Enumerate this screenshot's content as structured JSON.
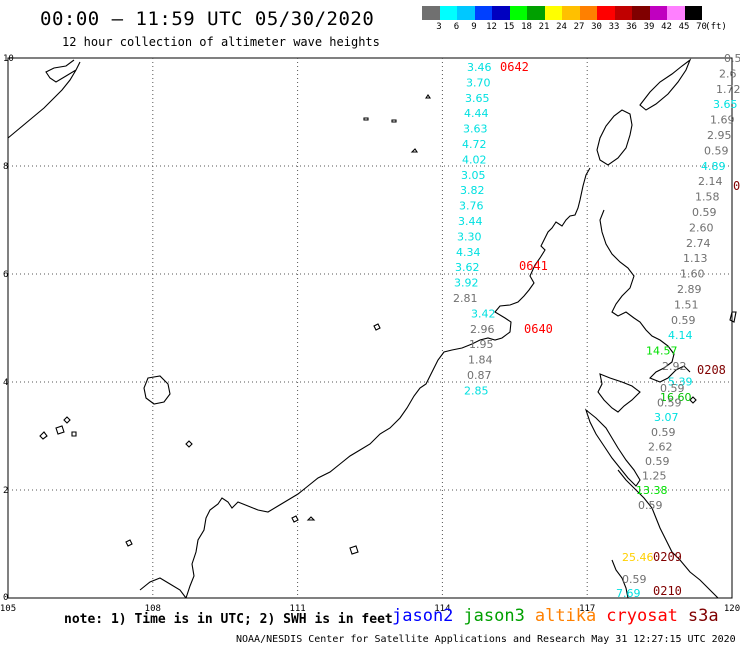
{
  "header": {
    "title": "00:00 – 11:59 UTC 05/30/2020",
    "subtitle": "12 hour collection of altimeter wave heights"
  },
  "legend": {
    "unit": "(ft)",
    "swatches": [
      {
        "label": "3",
        "color": "#707070"
      },
      {
        "label": "6",
        "color": "#00ffff"
      },
      {
        "label": "9",
        "color": "#00c8ff"
      },
      {
        "label": "12",
        "color": "#0040ff"
      },
      {
        "label": "15",
        "color": "#0000c0"
      },
      {
        "label": "18",
        "color": "#00ff00"
      },
      {
        "label": "21",
        "color": "#00a000"
      },
      {
        "label": "24",
        "color": "#ffff00"
      },
      {
        "label": "27",
        "color": "#ffc000"
      },
      {
        "label": "30",
        "color": "#ff8000"
      },
      {
        "label": "33",
        "color": "#ff0000"
      },
      {
        "label": "36",
        "color": "#c00000"
      },
      {
        "label": "39",
        "color": "#800000"
      },
      {
        "label": "42",
        "color": "#c000c0"
      },
      {
        "label": "45",
        "color": "#ff80ff"
      },
      {
        "label": "70",
        "color": "#000000"
      }
    ]
  },
  "axes": {
    "x_ticks": [
      "105",
      "108",
      "111",
      "114",
      "117",
      "120"
    ],
    "y_ticks": [
      "0",
      "2",
      "4",
      "6",
      "8",
      "10"
    ]
  },
  "track_a": {
    "color": "#00e0e0",
    "values": [
      "3.46",
      "3.70",
      "3.65",
      "4.44",
      "3.63",
      "4.72",
      "4.02",
      "3.05",
      "3.82",
      "3.76",
      "3.44",
      "3.30",
      "4.34",
      "3.62",
      "3.92",
      "2.81",
      "3.42",
      "2.96",
      "1.95",
      "1.84",
      "0.87",
      "2.85"
    ],
    "value_colors": [
      "#00e0e0",
      "#00e0e0",
      "#00e0e0",
      "#00e0e0",
      "#00e0e0",
      "#00e0e0",
      "#00e0e0",
      "#00e0e0",
      "#00e0e0",
      "#00e0e0",
      "#00e0e0",
      "#00e0e0",
      "#00e0e0",
      "#00e0e0",
      "#00e0e0",
      "#707070",
      "#00e0e0",
      "#707070",
      "#707070",
      "#707070",
      "#707070",
      "#00e0e0"
    ]
  },
  "track_b": {
    "values": [
      "0.5",
      "2.6",
      "1.72",
      "3.65",
      "1.69",
      "2.95",
      "0.59",
      "4.89",
      "2.14",
      "1.58",
      "0.59",
      "2.60",
      "2.74",
      "1.13",
      "1.60",
      "2.89",
      "1.51",
      "0.59",
      "4.14",
      "14.57",
      "2.92",
      "5.39",
      "16.60"
    ],
    "value_colors": [
      "#707070",
      "#707070",
      "#707070",
      "#00e0e0",
      "#707070",
      "#707070",
      "#707070",
      "#00e0e0",
      "#707070",
      "#707070",
      "#707070",
      "#707070",
      "#707070",
      "#707070",
      "#707070",
      "#707070",
      "#707070",
      "#707070",
      "#00e0e0",
      "#00e000",
      "#707070",
      "#00e0e0",
      "#00c000"
    ]
  },
  "track_c": {
    "values": [
      "0.59",
      "0.59",
      "3.07",
      "0.59",
      "2.62",
      "0.59",
      "1.25",
      "13.38",
      "0.59"
    ],
    "value_colors": [
      "#707070",
      "#707070",
      "#00e0e0",
      "#707070",
      "#707070",
      "#707070",
      "#707070",
      "#00e000",
      "#707070"
    ]
  },
  "track_d": {
    "values": [
      "25.46",
      "0.59",
      "7.69"
    ],
    "value_colors": [
      "#ffd000",
      "#707070",
      "#00e0e0"
    ]
  },
  "time_labels": [
    {
      "text": "0642",
      "color": "#ff0000"
    },
    {
      "text": "0641",
      "color": "#ff0000"
    },
    {
      "text": "0640",
      "color": "#ff0000"
    },
    {
      "text": "0208",
      "color": "#800000"
    },
    {
      "text": "0209",
      "color": "#800000"
    },
    {
      "text": "0210",
      "color": "#800000"
    },
    {
      "text": "0",
      "color": "#800000"
    }
  ],
  "footer": {
    "note": "note: 1) Time is in UTC; 2) SWH is in feet",
    "satellites": [
      {
        "name": "jason2",
        "color": "#0000ff"
      },
      {
        "name": "jason3",
        "color": "#00a000"
      },
      {
        "name": "altika",
        "color": "#ff8000"
      },
      {
        "name": "cryosat",
        "color": "#ff0000"
      },
      {
        "name": "s3a",
        "color": "#800000"
      }
    ],
    "credit": "NOAA/NESDIS Center for Satellite Applications and Research   May 31 12:27:15 UTC 2020"
  }
}
